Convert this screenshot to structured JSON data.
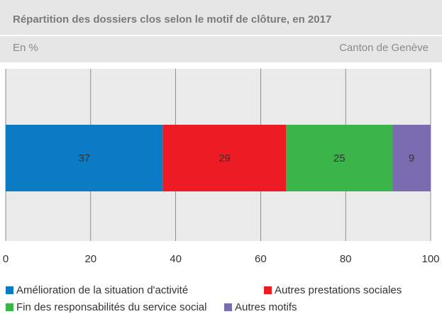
{
  "chart_data": {
    "type": "stacked-bar-horizontal",
    "title": "Répartition des dossiers clos selon le motif de clôture, en 2017",
    "subtitle": "En %",
    "annotation": "Canton de Genève",
    "categories": [
      null
    ],
    "series": [
      {
        "name": "Amélioration de la situation d'activité",
        "color": "#0b7bc3",
        "values": [
          37
        ]
      },
      {
        "name": "Autres prestations sociales",
        "color": "#ed1c24",
        "values": [
          29
        ]
      },
      {
        "name": "Fin des responsabilités du service social",
        "color": "#3bb44a",
        "values": [
          25
        ]
      },
      {
        "name": "Autres motifs",
        "color": "#7b6cb2",
        "values": [
          9
        ]
      }
    ],
    "xlim": [
      0,
      100
    ],
    "xticks": [
      0,
      20,
      40,
      60,
      80,
      100
    ],
    "grid": true
  }
}
